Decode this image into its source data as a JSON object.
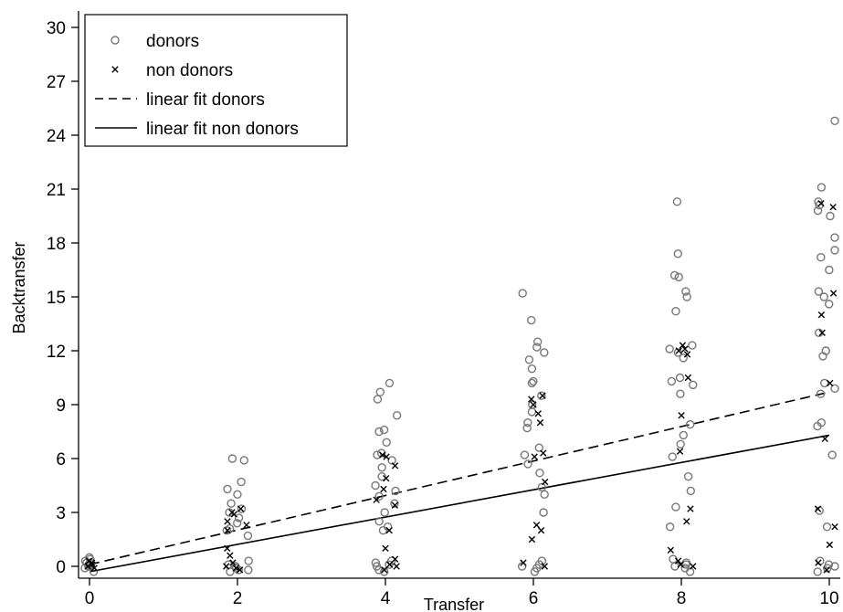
{
  "chart_data": {
    "type": "scatter",
    "xlabel": "Transfer",
    "ylabel": "Backtransfer",
    "xlim": [
      0,
      10
    ],
    "ylim": [
      0,
      30
    ],
    "x_ticks": [
      0,
      2,
      4,
      6,
      8,
      10
    ],
    "y_ticks": [
      0,
      3,
      6,
      9,
      12,
      15,
      18,
      21,
      24,
      27,
      30
    ],
    "grid": false,
    "legend_position": "top-left",
    "series": [
      {
        "name": "donors",
        "marker": "circle",
        "color": "#777777",
        "points": [
          [
            0,
            0.5
          ],
          [
            0,
            0.4
          ],
          [
            0,
            0.3
          ],
          [
            0,
            0.2
          ],
          [
            0,
            0.1
          ],
          [
            0,
            0.0
          ],
          [
            0,
            -0.1
          ],
          [
            0,
            -0.3
          ],
          [
            0,
            0.2
          ],
          [
            0,
            0.0
          ],
          [
            2,
            6.0
          ],
          [
            2,
            5.9
          ],
          [
            2,
            4.7
          ],
          [
            2,
            4.3
          ],
          [
            2,
            4.0
          ],
          [
            2,
            3.5
          ],
          [
            2,
            3.2
          ],
          [
            2,
            3.0
          ],
          [
            2,
            2.7
          ],
          [
            2,
            2.4
          ],
          [
            2,
            2.1
          ],
          [
            2,
            2.0
          ],
          [
            2,
            1.7
          ],
          [
            2,
            0.3
          ],
          [
            2,
            0.1
          ],
          [
            2,
            -0.1
          ],
          [
            2,
            -0.2
          ],
          [
            2,
            -0.3
          ],
          [
            2,
            0.0
          ],
          [
            2,
            -0.2
          ],
          [
            4,
            10.2
          ],
          [
            4,
            9.7
          ],
          [
            4,
            9.3
          ],
          [
            4,
            8.4
          ],
          [
            4,
            7.6
          ],
          [
            4,
            7.5
          ],
          [
            4,
            6.9
          ],
          [
            4,
            6.3
          ],
          [
            4,
            6.2
          ],
          [
            4,
            5.9
          ],
          [
            4,
            5.5
          ],
          [
            4,
            5.0
          ],
          [
            4,
            4.5
          ],
          [
            4,
            4.2
          ],
          [
            4,
            3.9
          ],
          [
            4,
            3.5
          ],
          [
            4,
            3.0
          ],
          [
            4,
            2.5
          ],
          [
            4,
            2.2
          ],
          [
            4,
            2.0
          ],
          [
            4,
            0.3
          ],
          [
            4,
            0.1
          ],
          [
            4,
            0.0
          ],
          [
            4,
            -0.2
          ],
          [
            4,
            -0.3
          ],
          [
            4,
            0.2
          ],
          [
            6,
            15.2
          ],
          [
            6,
            13.7
          ],
          [
            6,
            12.5
          ],
          [
            6,
            12.2
          ],
          [
            6,
            11.9
          ],
          [
            6,
            11.5
          ],
          [
            6,
            11.0
          ],
          [
            6,
            10.3
          ],
          [
            6,
            10.2
          ],
          [
            6,
            9.5
          ],
          [
            6,
            9.0
          ],
          [
            6,
            8.6
          ],
          [
            6,
            8.0
          ],
          [
            6,
            7.7
          ],
          [
            6,
            6.6
          ],
          [
            6,
            6.2
          ],
          [
            6,
            5.7
          ],
          [
            6,
            5.2
          ],
          [
            6,
            4.4
          ],
          [
            6,
            4.0
          ],
          [
            6,
            3.0
          ],
          [
            6,
            0.3
          ],
          [
            6,
            0.1
          ],
          [
            6,
            -0.1
          ],
          [
            6,
            -0.3
          ],
          [
            6,
            0.0
          ],
          [
            8,
            20.3
          ],
          [
            8,
            17.4
          ],
          [
            8,
            16.2
          ],
          [
            8,
            16.1
          ],
          [
            8,
            15.3
          ],
          [
            8,
            15.0
          ],
          [
            8,
            14.2
          ],
          [
            8,
            12.3
          ],
          [
            8,
            12.1
          ],
          [
            8,
            11.9
          ],
          [
            8,
            11.6
          ],
          [
            8,
            10.5
          ],
          [
            8,
            10.3
          ],
          [
            8,
            10.1
          ],
          [
            8,
            9.6
          ],
          [
            8,
            7.9
          ],
          [
            8,
            7.3
          ],
          [
            8,
            6.8
          ],
          [
            8,
            6.1
          ],
          [
            8,
            5.0
          ],
          [
            8,
            4.2
          ],
          [
            8,
            3.3
          ],
          [
            8,
            2.2
          ],
          [
            8,
            0.4
          ],
          [
            8,
            0.2
          ],
          [
            8,
            0.1
          ],
          [
            8,
            -0.1
          ],
          [
            8,
            -0.3
          ],
          [
            8,
            0.0
          ],
          [
            10,
            24.8
          ],
          [
            10,
            21.1
          ],
          [
            10,
            20.3
          ],
          [
            10,
            20.1
          ],
          [
            10,
            19.8
          ],
          [
            10,
            19.5
          ],
          [
            10,
            18.3
          ],
          [
            10,
            17.6
          ],
          [
            10,
            17.2
          ],
          [
            10,
            16.5
          ],
          [
            10,
            15.3
          ],
          [
            10,
            15.0
          ],
          [
            10,
            14.6
          ],
          [
            10,
            13.0
          ],
          [
            10,
            12.0
          ],
          [
            10,
            11.7
          ],
          [
            10,
            10.2
          ],
          [
            10,
            9.9
          ],
          [
            10,
            9.6
          ],
          [
            10,
            8.0
          ],
          [
            10,
            7.8
          ],
          [
            10,
            6.2
          ],
          [
            10,
            3.1
          ],
          [
            10,
            2.2
          ],
          [
            10,
            0.3
          ],
          [
            10,
            0.1
          ],
          [
            10,
            -0.1
          ],
          [
            10,
            -0.3
          ],
          [
            10,
            0.0
          ]
        ]
      },
      {
        "name": "non donors",
        "marker": "x",
        "color": "#000000",
        "points": [
          [
            0,
            0.3
          ],
          [
            0,
            0.1
          ],
          [
            0,
            0.0
          ],
          [
            0,
            -0.1
          ],
          [
            0,
            0.2
          ],
          [
            2,
            3.2
          ],
          [
            2,
            3.0
          ],
          [
            2,
            2.9
          ],
          [
            2,
            2.5
          ],
          [
            2,
            2.3
          ],
          [
            2,
            2.0
          ],
          [
            2,
            1.0
          ],
          [
            2,
            0.6
          ],
          [
            2,
            0.2
          ],
          [
            2,
            0.0
          ],
          [
            2,
            -0.2
          ],
          [
            2,
            -0.1
          ],
          [
            4,
            6.2
          ],
          [
            4,
            6.1
          ],
          [
            4,
            5.6
          ],
          [
            4,
            4.9
          ],
          [
            4,
            4.3
          ],
          [
            4,
            3.7
          ],
          [
            4,
            3.4
          ],
          [
            4,
            2.0
          ],
          [
            4,
            1.0
          ],
          [
            4,
            0.4
          ],
          [
            4,
            0.1
          ],
          [
            4,
            -0.2
          ],
          [
            4,
            0.0
          ],
          [
            6,
            9.5
          ],
          [
            6,
            9.3
          ],
          [
            6,
            9.0
          ],
          [
            6,
            8.5
          ],
          [
            6,
            8.0
          ],
          [
            6,
            6.3
          ],
          [
            6,
            6.1
          ],
          [
            6,
            4.7
          ],
          [
            6,
            2.3
          ],
          [
            6,
            2.0
          ],
          [
            6,
            1.5
          ],
          [
            6,
            0.2
          ],
          [
            6,
            0.0
          ],
          [
            8,
            12.3
          ],
          [
            8,
            12.1
          ],
          [
            8,
            12.0
          ],
          [
            8,
            11.8
          ],
          [
            8,
            10.5
          ],
          [
            8,
            8.4
          ],
          [
            8,
            6.4
          ],
          [
            8,
            3.2
          ],
          [
            8,
            2.5
          ],
          [
            8,
            0.9
          ],
          [
            8,
            0.3
          ],
          [
            8,
            0.1
          ],
          [
            8,
            0.0
          ],
          [
            10,
            20.0
          ],
          [
            10,
            20.2
          ],
          [
            10,
            15.2
          ],
          [
            10,
            14.0
          ],
          [
            10,
            13.0
          ],
          [
            10,
            10.2
          ],
          [
            10,
            7.1
          ],
          [
            10,
            3.2
          ],
          [
            10,
            2.2
          ],
          [
            10,
            1.2
          ],
          [
            10,
            0.2
          ],
          [
            10,
            -0.2
          ]
        ]
      },
      {
        "name": "linear fit donors",
        "type": "line",
        "style": "dashed",
        "color": "#000000",
        "x": [
          0,
          10
        ],
        "y": [
          0.1,
          9.7
        ]
      },
      {
        "name": "linear fit non donors",
        "type": "line",
        "style": "solid",
        "color": "#000000",
        "x": [
          0,
          10
        ],
        "y": [
          -0.3,
          7.3
        ]
      }
    ]
  }
}
